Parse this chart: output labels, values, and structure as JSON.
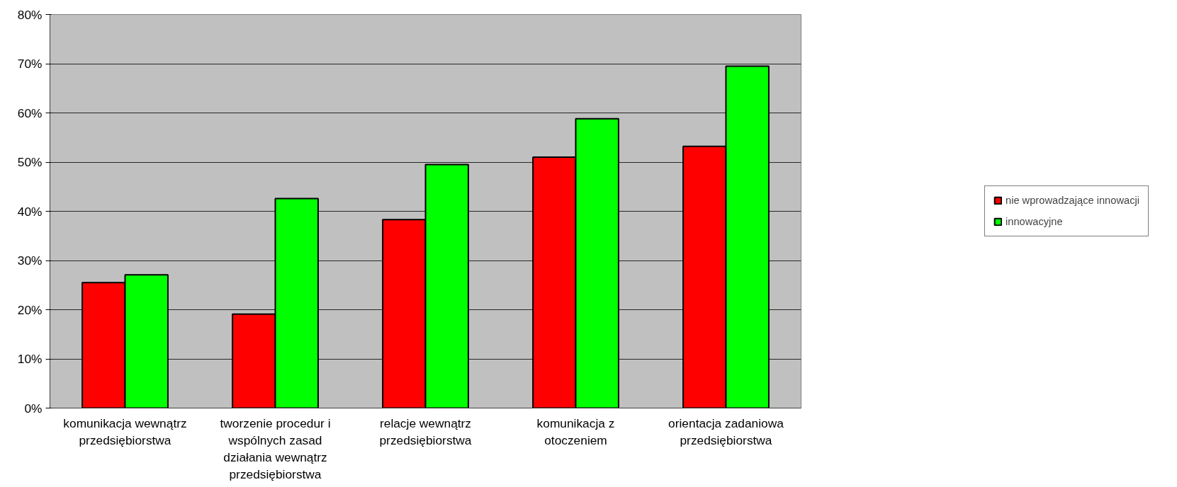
{
  "chart_data": {
    "type": "bar",
    "categories": [
      "komunikacja wewnątrz przedsiębiorstwa",
      "tworzenie procedur i wspólnych zasad działania wewnątrz przedsiębiorstwa",
      "relacje wewnątrz przedsiębiorstwa",
      "komunikacja z otoczeniem",
      "orientacja zadaniowa przedsiębiorstwa"
    ],
    "series": [
      {
        "name": "nie wprowadzające innowacji",
        "color": "#ff0000",
        "values": [
          25.5,
          19.1,
          38.3,
          51.0,
          53.2
        ]
      },
      {
        "name": "innowacyjne",
        "color": "#00ff00",
        "values": [
          27.1,
          42.6,
          49.5,
          58.8,
          69.5
        ]
      }
    ],
    "ylim": [
      0,
      80
    ],
    "yticks": [
      {
        "value": 0,
        "label": "0%"
      },
      {
        "value": 10,
        "label": "10%"
      },
      {
        "value": 20,
        "label": "20%"
      },
      {
        "value": 30,
        "label": "30%"
      },
      {
        "value": 40,
        "label": "40%"
      },
      {
        "value": 50,
        "label": "50%"
      },
      {
        "value": 60,
        "label": "60%"
      },
      {
        "value": 70,
        "label": "70%"
      },
      {
        "value": 80,
        "label": "80%"
      }
    ],
    "grid": "y",
    "legend": "right"
  }
}
